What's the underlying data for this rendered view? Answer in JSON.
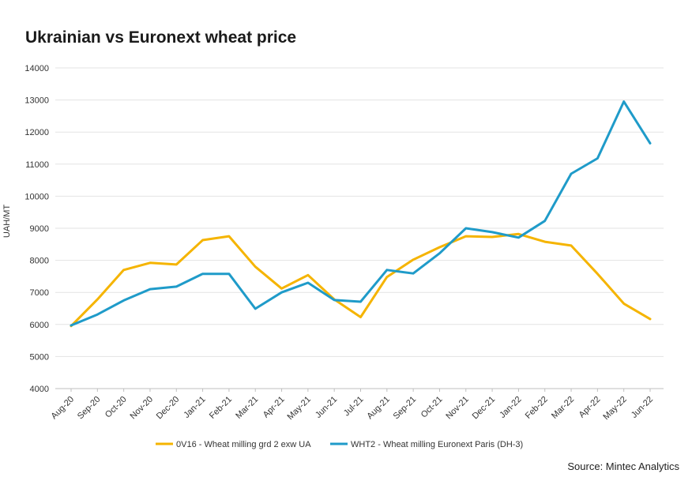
{
  "colors": {
    "ua": "#F5B400",
    "euronext": "#1F9BC9",
    "grid": "#e3e3e3",
    "axis": "#bfbfbf"
  },
  "source": "Source: Mintec Analytics",
  "chart_data": {
    "type": "line",
    "title": "Ukrainian vs Euronext wheat price",
    "xlabel": "",
    "ylabel": "UAH/MT",
    "ylim": [
      4000,
      14000
    ],
    "yticks": [
      4000,
      5000,
      6000,
      7000,
      8000,
      9000,
      10000,
      11000,
      12000,
      13000,
      14000
    ],
    "categories": [
      "Aug-20",
      "Sep-20",
      "Oct-20",
      "Nov-20",
      "Dec-20",
      "Jan-21",
      "Feb-21",
      "Mar-21",
      "Apr-21",
      "May-21",
      "Jun-21",
      "Jul-21",
      "Aug-21",
      "Sep-21",
      "Oct-21",
      "Nov-21",
      "Dec-21",
      "Jan-22",
      "Feb-22",
      "Mar-22",
      "Apr-22",
      "May-22",
      "Jun-22"
    ],
    "legend_position": "bottom",
    "series": [
      {
        "name": "0V16 - Wheat milling grd 2 exw UA",
        "color_key": "ua",
        "values": [
          5950,
          6780,
          7700,
          7920,
          7870,
          8630,
          8750,
          7800,
          7120,
          7540,
          6780,
          6230,
          7480,
          8020,
          8410,
          8750,
          8730,
          8820,
          8580,
          8460,
          7580,
          6650,
          6170
        ]
      },
      {
        "name": "WHT2 - Wheat milling Euronext  Paris (DH-3)",
        "color_key": "euronext",
        "values": [
          5970,
          6310,
          6750,
          7100,
          7180,
          7580,
          7580,
          6490,
          7000,
          7300,
          6760,
          6710,
          7700,
          7590,
          8220,
          9000,
          8880,
          8710,
          9230,
          10700,
          11180,
          12950,
          11650
        ]
      }
    ]
  }
}
